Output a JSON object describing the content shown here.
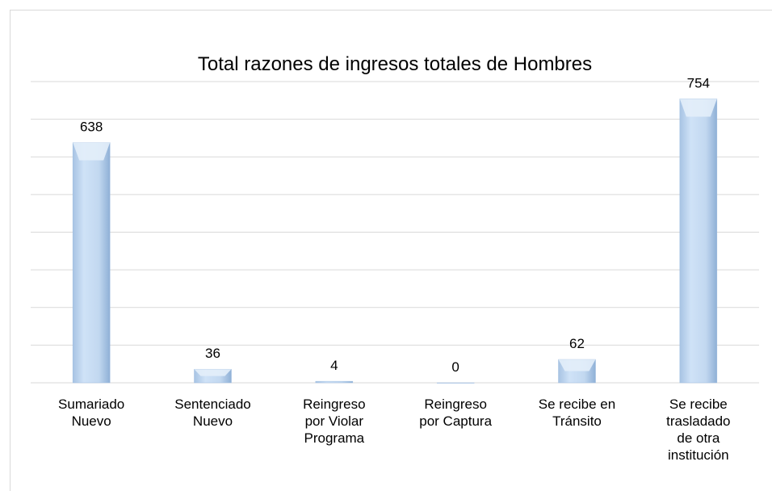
{
  "chart_data": {
    "type": "bar",
    "title": "Total razones de ingresos totales de Hombres",
    "categories": [
      "Sumariado Nuevo",
      "Sentenciado Nuevo",
      "Reingreso por Violar Programa",
      "Reingreso por Captura",
      "Se recibe en Tránsito",
      "Se recibe trasladado de otra institución"
    ],
    "values": [
      638,
      36,
      4,
      0,
      62,
      754
    ],
    "color": "#b9d3ee",
    "ylim": [
      0,
      800
    ],
    "yticks": [
      0,
      100,
      200,
      300,
      400,
      500,
      600,
      700,
      800
    ],
    "grid": true,
    "tick_labels": false,
    "data_labels": true
  }
}
